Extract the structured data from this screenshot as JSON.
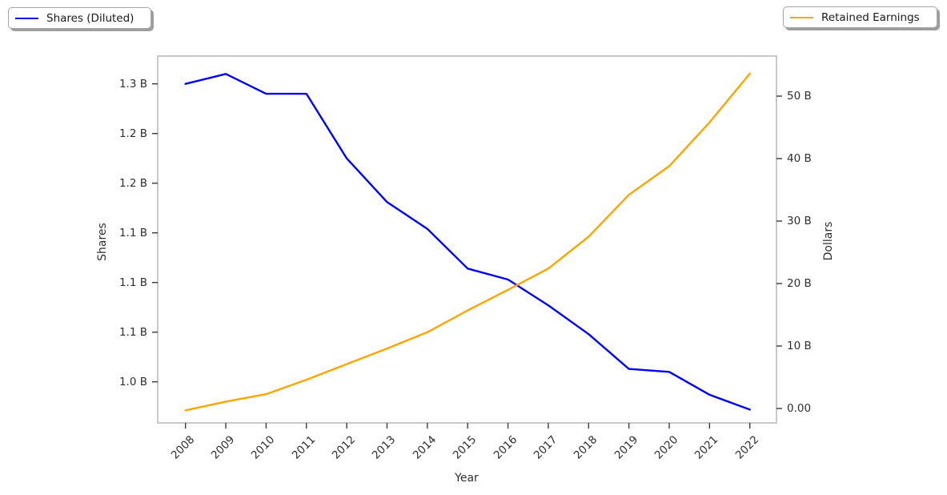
{
  "figure": {
    "background": "#ffffff",
    "text_color": "#2e2e2e",
    "frame_color": "#c9c9c9"
  },
  "legends": [
    {
      "label": "Shares (Diluted)",
      "color": "#0000ff",
      "position": "upper-left"
    },
    {
      "label": "Retained Earnings",
      "color": "#ffa500",
      "position": "upper-right"
    }
  ],
  "chart_data": {
    "type": "line",
    "title": "",
    "xlabel": "Year",
    "grid": false,
    "x": [
      2008,
      2009,
      2010,
      2011,
      2012,
      2013,
      2014,
      2015,
      2016,
      2017,
      2018,
      2019,
      2020,
      2021,
      2022
    ],
    "x_tick_labels": [
      "2008",
      "2009",
      "2010",
      "2011",
      "2012",
      "2013",
      "2014",
      "2015",
      "2016",
      "2017",
      "2018",
      "2019",
      "2020",
      "2021",
      "2022"
    ],
    "series": [
      {
        "name": "Shares (Diluted)",
        "axis": "left",
        "color": "#0000ff",
        "unit": "billions of shares",
        "values": [
          1.3,
          1.31,
          1.29,
          1.29,
          1.225,
          1.181,
          1.154,
          1.114,
          1.103,
          1.077,
          1.048,
          1.013,
          1.01,
          0.987,
          0.972
        ]
      },
      {
        "name": "Retained Earnings",
        "axis": "right",
        "color": "#ffa500",
        "unit": "billions of dollars",
        "values": [
          -0.3,
          1.1,
          2.3,
          4.6,
          7.1,
          9.6,
          12.2,
          15.7,
          19.0,
          22.4,
          27.5,
          34.2,
          38.8,
          45.8,
          53.6
        ]
      }
    ],
    "left_axis": {
      "label": "Shares",
      "range": [
        0.95863,
        1.32798
      ],
      "ticks": [
        {
          "value": 1.0,
          "label": "1.0 B"
        },
        {
          "value": 1.05,
          "label": "1.1 B"
        },
        {
          "value": 1.1,
          "label": "1.1 B"
        },
        {
          "value": 1.15,
          "label": "1.1 B"
        },
        {
          "value": 1.2,
          "label": "1.2 B"
        },
        {
          "value": 1.25,
          "label": "1.2 B"
        },
        {
          "value": 1.3,
          "label": "1.3 B"
        }
      ]
    },
    "right_axis": {
      "label": "Dollars",
      "range": [
        -2.3077,
        56.41
      ],
      "ticks": [
        {
          "value": 0,
          "label": "0.00"
        },
        {
          "value": 10,
          "label": "10 B"
        },
        {
          "value": 20,
          "label": "20 B"
        },
        {
          "value": 30,
          "label": "30 B"
        },
        {
          "value": 40,
          "label": "40 B"
        },
        {
          "value": 50,
          "label": "50 B"
        }
      ]
    }
  }
}
